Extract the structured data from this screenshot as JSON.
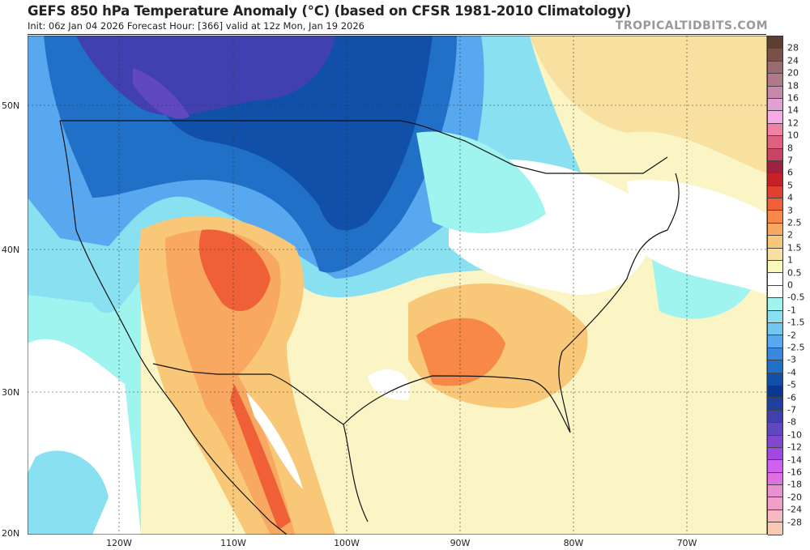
{
  "header": {
    "title": "GEFS 850 hPa Temperature Anomaly (°C) (based on CFSR 1981-2010 Climatology)",
    "subtitle": "Init: 06z Jan 04 2026   Forecast Hour: [366]   valid at 12z Mon, Jan 19 2026",
    "brand": "TROPICALTIDBITS.COM"
  },
  "map": {
    "variable": "850 hPa temperature anomaly",
    "units": "°C",
    "latitude_labels": [
      "50N",
      "40N",
      "30N",
      "20N"
    ],
    "longitude_labels": [
      "120W",
      "110W",
      "100W",
      "90W",
      "80W",
      "70W"
    ]
  },
  "colorbar": {
    "labels": [
      "28",
      "24",
      "20",
      "18",
      "16",
      "14",
      "12",
      "10",
      "8",
      "7",
      "6",
      "5",
      "4",
      "3",
      "2.5",
      "2",
      "1.5",
      "1",
      "0.5",
      "0",
      "-0.5",
      "-1",
      "-1.5",
      "-2",
      "-2.5",
      "-3",
      "-4",
      "-5",
      "-6",
      "-7",
      "-8",
      "-10",
      "-12",
      "-14",
      "-16",
      "-18",
      "-20",
      "-24",
      "-28"
    ],
    "colors": [
      "#5c3f2f",
      "#7a5148",
      "#9a6a72",
      "#b07888",
      "#c888ac",
      "#e0a0d4",
      "#f8a8e4",
      "#f080a4",
      "#e06080",
      "#c84462",
      "#a02040",
      "#c82028",
      "#e04030",
      "#f06038",
      "#f88848",
      "#f8a860",
      "#f8c878",
      "#f8e0a0",
      "#f8f8bc",
      "#ffffff",
      "#ffffff",
      "#a0f4f0",
      "#88e0f0",
      "#70c8f0",
      "#58a8f0",
      "#3888e0",
      "#2070c8",
      "#1050a8",
      "#083890",
      "#2040a0",
      "#4040b0",
      "#6048c0",
      "#8048d0",
      "#a048e0",
      "#d060f0",
      "#e070e0",
      "#e890d0",
      "#f0a0c8",
      "#f8b8c0",
      "#f8c8b0"
    ]
  }
}
